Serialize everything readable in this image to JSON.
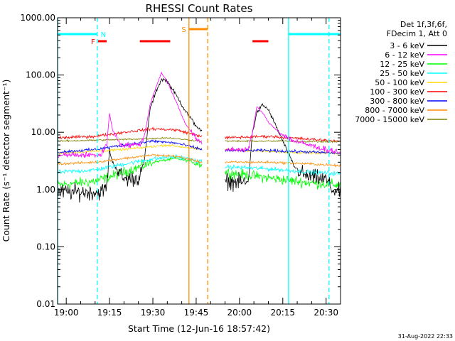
{
  "chart_data": {
    "type": "line",
    "title": "RHESSI Count Rates",
    "xlabel": "Start Time (12-Jun-16 18:57:42)",
    "ylabel": "Count Rate (s⁻¹ detector segment⁻¹)",
    "y_scale": "log",
    "ylim": [
      0.01,
      1000
    ],
    "xlim_minutes": [
      -3,
      95
    ],
    "x_ticks": [
      {
        "minute": 0,
        "label": "19:00"
      },
      {
        "minute": 15,
        "label": "19:15"
      },
      {
        "minute": 30,
        "label": "19:30"
      },
      {
        "minute": 45,
        "label": "19:45"
      },
      {
        "minute": 60,
        "label": "20:00"
      },
      {
        "minute": 75,
        "label": "20:15"
      },
      {
        "minute": 90,
        "label": "20:30"
      }
    ],
    "y_ticks": [
      {
        "value": 0.01,
        "label": "0.01"
      },
      {
        "value": 0.1,
        "label": "0.10"
      },
      {
        "value": 1,
        "label": "1.00"
      },
      {
        "value": 10,
        "label": "10.00"
      },
      {
        "value": 100,
        "label": "100.00"
      },
      {
        "value": 1000,
        "label": "1000.00"
      }
    ],
    "legend_header": [
      "Det 1f,3f,6f,",
      "FDecim 1, Att 0"
    ],
    "data_gap_minutes": [
      47,
      55
    ],
    "series": [
      {
        "name": "3 - 6 keV",
        "color": "#000000",
        "base": 0.9,
        "noise": 0.55,
        "peak_slope": 1.0,
        "points": [
          [
            -3,
            0.9
          ],
          [
            12,
            0.9
          ],
          [
            14,
            1.1
          ],
          [
            15,
            5
          ],
          [
            16,
            3
          ],
          [
            20,
            1.5
          ],
          [
            25,
            1.6
          ],
          [
            27,
            3
          ],
          [
            29,
            25
          ],
          [
            31,
            50
          ],
          [
            33,
            85
          ],
          [
            35,
            78
          ],
          [
            38,
            45
          ],
          [
            41,
            25
          ],
          [
            44,
            15
          ],
          [
            47,
            10
          ],
          [
            55,
            1.4
          ],
          [
            63,
            1.3
          ],
          [
            64.5,
            10
          ],
          [
            66,
            22
          ],
          [
            68,
            30
          ],
          [
            70,
            25
          ],
          [
            72,
            15
          ],
          [
            75,
            7
          ],
          [
            79,
            2.5
          ],
          [
            83,
            1.7
          ],
          [
            90,
            1.5
          ],
          [
            92,
            1.0
          ],
          [
            95,
            0.9
          ]
        ]
      },
      {
        "name": "6 - 12 keV",
        "color": "#ff00ff",
        "base": 4.0,
        "noise": 0.2,
        "peak_slope": 0.95,
        "points": [
          [
            -3,
            4
          ],
          [
            12,
            4
          ],
          [
            14,
            6
          ],
          [
            15,
            22
          ],
          [
            16,
            11
          ],
          [
            19,
            6
          ],
          [
            25,
            6
          ],
          [
            27,
            8
          ],
          [
            29,
            30
          ],
          [
            31,
            60
          ],
          [
            33,
            110
          ],
          [
            35,
            75
          ],
          [
            38,
            35
          ],
          [
            41,
            15
          ],
          [
            44,
            9
          ],
          [
            47,
            6
          ],
          [
            55,
            5
          ],
          [
            63,
            5
          ],
          [
            64.5,
            10
          ],
          [
            66,
            28
          ],
          [
            68,
            22
          ],
          [
            70,
            15
          ],
          [
            72,
            12
          ],
          [
            75,
            9
          ],
          [
            79,
            7
          ],
          [
            90,
            5
          ],
          [
            95,
            4.5
          ]
        ]
      },
      {
        "name": "12 - 25 keV",
        "color": "#00ff00",
        "base": 1.2,
        "noise": 0.35,
        "peak_slope": 0,
        "points": [
          [
            -3,
            1.2
          ],
          [
            10,
            1.4
          ],
          [
            20,
            2.0
          ],
          [
            30,
            3.0
          ],
          [
            38,
            3.5
          ],
          [
            47,
            2.8
          ],
          [
            55,
            2.0
          ],
          [
            70,
            1.6
          ],
          [
            85,
            1.3
          ],
          [
            95,
            1.2
          ]
        ]
      },
      {
        "name": "25 - 50 keV",
        "color": "#00ffff",
        "base": 1.9,
        "noise": 0.15,
        "peak_slope": 0,
        "points": [
          [
            -3,
            2.0
          ],
          [
            10,
            2.2
          ],
          [
            20,
            2.8
          ],
          [
            30,
            3.4
          ],
          [
            38,
            3.8
          ],
          [
            47,
            3.0
          ],
          [
            55,
            2.5
          ],
          [
            70,
            2.3
          ],
          [
            85,
            2.0
          ],
          [
            95,
            1.9
          ]
        ]
      },
      {
        "name": "50 - 100 keV",
        "color": "#ffd700",
        "base": 4.3,
        "noise": 0.08,
        "peak_slope": 0,
        "points": [
          [
            -3,
            4.3
          ],
          [
            20,
            5.0
          ],
          [
            35,
            6.0
          ],
          [
            47,
            5.0
          ],
          [
            55,
            5.0
          ],
          [
            75,
            4.5
          ],
          [
            95,
            4.3
          ]
        ]
      },
      {
        "name": "100 - 300 keV",
        "color": "#ff0000",
        "base": 8.5,
        "noise": 0.1,
        "peak_slope": 0,
        "points": [
          [
            -3,
            8
          ],
          [
            10,
            8.5
          ],
          [
            20,
            10
          ],
          [
            30,
            11.5
          ],
          [
            38,
            11
          ],
          [
            47,
            8.5
          ],
          [
            55,
            8
          ],
          [
            70,
            8.5
          ],
          [
            85,
            7.5
          ],
          [
            95,
            7
          ]
        ]
      },
      {
        "name": "300 - 800 keV",
        "color": "#0000ff",
        "base": 4.8,
        "noise": 0.1,
        "peak_slope": 0,
        "points": [
          [
            -3,
            4.5
          ],
          [
            10,
            5
          ],
          [
            20,
            6
          ],
          [
            30,
            7
          ],
          [
            38,
            6.5
          ],
          [
            47,
            5
          ],
          [
            55,
            4.8
          ],
          [
            70,
            4.8
          ],
          [
            85,
            4.5
          ],
          [
            95,
            4.3
          ]
        ]
      },
      {
        "name": "800 - 7000 keV",
        "color": "#ff8c00",
        "base": 3.0,
        "noise": 0.08,
        "peak_slope": 0,
        "points": [
          [
            -3,
            2.8
          ],
          [
            10,
            3.0
          ],
          [
            20,
            3.5
          ],
          [
            30,
            4.0
          ],
          [
            38,
            3.8
          ],
          [
            47,
            3.0
          ],
          [
            55,
            3.0
          ],
          [
            70,
            3.0
          ],
          [
            85,
            2.8
          ],
          [
            95,
            2.6
          ]
        ]
      },
      {
        "name": "7000 - 15000 keV",
        "color": "#808000",
        "base": 7.0,
        "noise": 0.06,
        "peak_slope": 0,
        "points": [
          [
            -3,
            7
          ],
          [
            20,
            7.5
          ],
          [
            35,
            8
          ],
          [
            47,
            7
          ],
          [
            55,
            7
          ],
          [
            75,
            7
          ],
          [
            95,
            6.8
          ]
        ]
      }
    ],
    "annotations": {
      "vertical_lines": [
        {
          "minute": -3,
          "color": "#00ffff",
          "style": "solid"
        },
        {
          "minute": 10.7,
          "color": "#00ffff",
          "style": "dashed"
        },
        {
          "minute": 42.5,
          "color": "#ff8c00",
          "style": "solid"
        },
        {
          "minute": 49,
          "color": "#ff8c00",
          "style": "dashed"
        },
        {
          "minute": 77,
          "color": "#00ffff",
          "style": "solid"
        },
        {
          "minute": 91,
          "color": "#00ffff",
          "style": "dashed"
        }
      ],
      "bars": [
        {
          "label": "N",
          "color": "#00ffff",
          "row": "top",
          "segments": [
            [
              -3,
              10.7
            ],
            [
              77,
              95
            ]
          ]
        },
        {
          "label": "F",
          "color": "#ff0000",
          "row": "middle",
          "segments": [
            [
              11,
              14
            ],
            [
              25.5,
              36
            ],
            [
              64.5,
              70
            ]
          ]
        },
        {
          "label": "S",
          "color": "#ff8c00",
          "row": "upper",
          "segments": [
            [
              42.5,
              49
            ]
          ]
        }
      ]
    },
    "timestamp": "31-Aug-2022 22:33"
  }
}
